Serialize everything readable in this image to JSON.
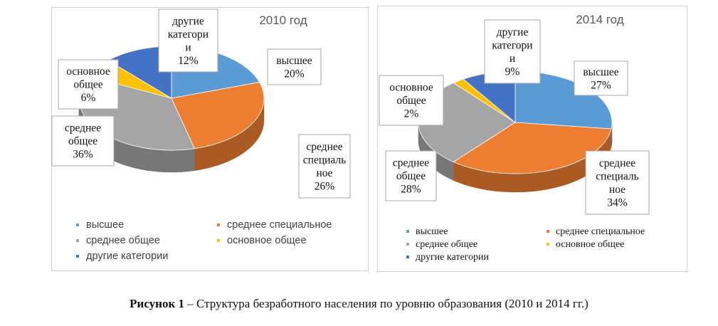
{
  "chart_data": [
    {
      "type": "pie",
      "title": "2010 год",
      "categories": [
        "высшее",
        "среднее специальное",
        "среднее общее",
        "основное общее",
        "другие категории"
      ],
      "values": [
        20,
        26,
        36,
        6,
        12
      ],
      "colors": [
        "#5b9bd5",
        "#ed7d31",
        "#a5a5a5",
        "#ffc000",
        "#4472c4"
      ],
      "labels": [
        {
          "lines": [
            "высшее",
            "20%"
          ]
        },
        {
          "lines": [
            "среднее",
            "специаль",
            "ное",
            "26%"
          ]
        },
        {
          "lines": [
            "среднее",
            "общее",
            "36%"
          ]
        },
        {
          "lines": [
            "основное",
            "общее",
            "6%"
          ]
        },
        {
          "lines": [
            "другие",
            "категори",
            "и",
            "12%"
          ]
        }
      ],
      "legend": [
        "высшее",
        "среднее специальное",
        "среднее общее",
        "основное общее",
        "другие категории"
      ]
    },
    {
      "type": "pie",
      "title": "2014 год",
      "categories": [
        "высшее",
        "среднее специальное",
        "среднее общее",
        "основное общее",
        "другие категории"
      ],
      "values": [
        27,
        34,
        28,
        2,
        9
      ],
      "colors": [
        "#5b9bd5",
        "#ed7d31",
        "#a5a5a5",
        "#ffc000",
        "#4472c4"
      ],
      "labels": [
        {
          "lines": [
            "высшее",
            "27%"
          ]
        },
        {
          "lines": [
            "среднее",
            "специаль",
            "ное",
            "34%"
          ]
        },
        {
          "lines": [
            "среднее",
            "общее",
            "28%"
          ]
        },
        {
          "lines": [
            "основное",
            "общее",
            "2%"
          ]
        },
        {
          "lines": [
            "другие",
            "категори",
            "и",
            "9%"
          ]
        }
      ],
      "legend": [
        "высшее",
        "среднее специальное",
        "среднее общее",
        "основное общее",
        "другие категории"
      ]
    }
  ],
  "caption": {
    "prefix": "Рисунок 1",
    "text": " – Структура безработного населения по уровню образования (2010 и 2014 гг.)"
  }
}
